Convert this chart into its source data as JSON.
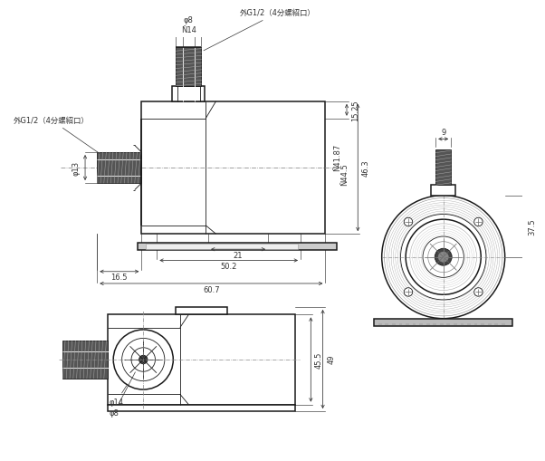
{
  "bg_color": "#ffffff",
  "lc": "#1a1a1a",
  "dc": "#333333",
  "annotations": {
    "phi14_top": "Ň14",
    "phi8_top": "φ8",
    "phi13": "φ13",
    "phi41_87": "Ň41.87",
    "phi44_5": "Ň44.5",
    "phi14_bot": "φ14",
    "phi8_bot": "φ8",
    "label_G12_top": "外G1/2（4分螺紹口）",
    "label_G12_left": "外G1/2（4分螺紹口）",
    "dim_15_25": "15.25",
    "dim_46_3": "46.3",
    "dim_41_87": "Ň41.87",
    "dim_44_5": "Ň44.5",
    "dim_21": "21",
    "dim_50_2": "50.2",
    "dim_16_5": "16.5",
    "dim_60_7": "60.7",
    "dim_9": "9",
    "dim_37_5": "37.5",
    "dim_45_5": "45.5",
    "dim_49": "49"
  }
}
